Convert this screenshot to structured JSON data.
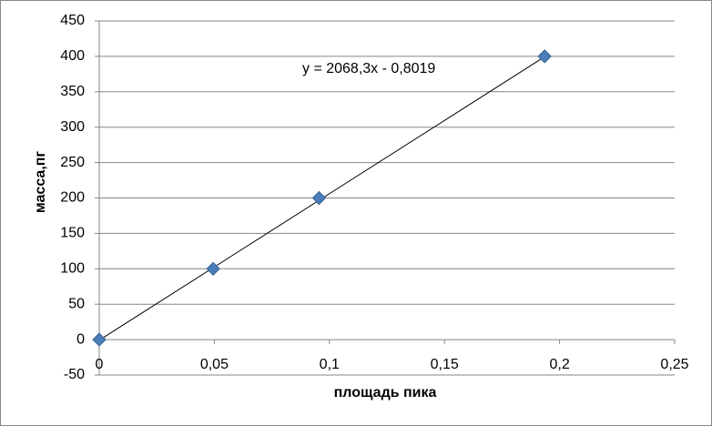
{
  "chart_data": {
    "type": "scatter",
    "x_label": "площадь пика",
    "y_label": "масса,пг",
    "series": [
      {
        "name": "масса",
        "color": "#4a7ebb",
        "x": [
          0,
          0.0495,
          0.0955,
          0.1935
        ],
        "values": [
          0,
          100,
          200,
          400
        ]
      }
    ],
    "trendline": {
      "label": "y = 2068,3x - 0,8019",
      "slope": 2068.3,
      "intercept": -0.8019
    },
    "xlim": [
      0,
      0.25
    ],
    "xticks": [
      0,
      {
        "value": 0.05,
        "label": "0,05"
      },
      {
        "value": 0.1,
        "label": "0,1"
      },
      {
        "value": 0.15,
        "label": "0,15"
      },
      {
        "value": 0.2,
        "label": "0,2"
      },
      {
        "value": 0.25,
        "label": "0,25"
      }
    ],
    "ylim": [
      -50,
      450
    ],
    "yticks": [
      -50,
      0,
      50,
      100,
      150,
      200,
      250,
      300,
      350,
      400,
      450
    ],
    "grid": true
  }
}
